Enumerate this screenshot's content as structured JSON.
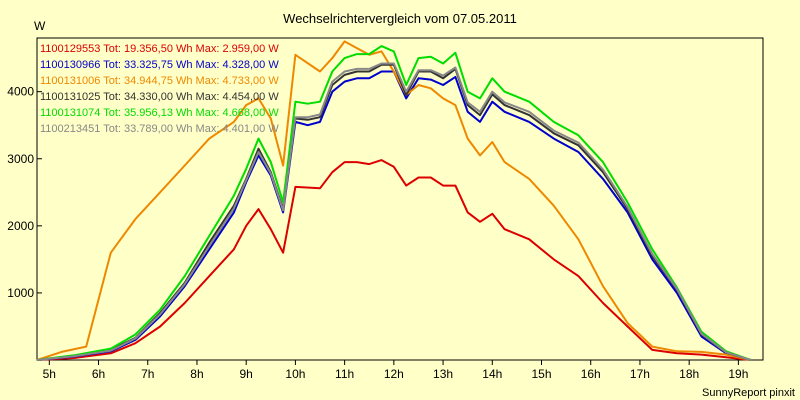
{
  "chart_data": {
    "type": "line",
    "title": "Wechselrichtervergleich vom 07.05.2011",
    "ylabel": "W",
    "footer": "SunnyReport pinxit",
    "ylim": [
      0,
      4800
    ],
    "xlim": [
      4.75,
      19.5
    ],
    "yticks": [
      1000,
      2000,
      3000,
      4000
    ],
    "xticks": [
      {
        "v": 5,
        "label": "5h"
      },
      {
        "v": 6,
        "label": "6h"
      },
      {
        "v": 7,
        "label": "7h"
      },
      {
        "v": 8,
        "label": "8h"
      },
      {
        "v": 9,
        "label": "9h"
      },
      {
        "v": 10,
        "label": "10h"
      },
      {
        "v": 11,
        "label": "11h"
      },
      {
        "v": 12,
        "label": "12h"
      },
      {
        "v": 13,
        "label": "13h"
      },
      {
        "v": 14,
        "label": "14h"
      },
      {
        "v": 15,
        "label": "15h"
      },
      {
        "v": 16,
        "label": "16h"
      },
      {
        "v": 17,
        "label": "17h"
      },
      {
        "v": 18,
        "label": "18h"
      },
      {
        "v": 19,
        "label": "19h"
      }
    ],
    "series": [
      {
        "name": "1100129553",
        "label": "1100129553 Tot: 19.356,50 Wh Max: 2.959,00 W",
        "color": "#dd0000",
        "points": [
          [
            4.75,
            0
          ],
          [
            5.5,
            30
          ],
          [
            6.25,
            100
          ],
          [
            6.75,
            250
          ],
          [
            7.25,
            500
          ],
          [
            7.75,
            850
          ],
          [
            8.25,
            1250
          ],
          [
            8.75,
            1650
          ],
          [
            9.0,
            2000
          ],
          [
            9.25,
            2250
          ],
          [
            9.5,
            1950
          ],
          [
            9.75,
            1600
          ],
          [
            10.0,
            2580
          ],
          [
            10.5,
            2560
          ],
          [
            10.75,
            2800
          ],
          [
            11.0,
            2950
          ],
          [
            11.25,
            2950
          ],
          [
            11.5,
            2920
          ],
          [
            11.75,
            2980
          ],
          [
            12.0,
            2880
          ],
          [
            12.25,
            2600
          ],
          [
            12.5,
            2720
          ],
          [
            12.75,
            2720
          ],
          [
            13.0,
            2600
          ],
          [
            13.25,
            2600
          ],
          [
            13.5,
            2200
          ],
          [
            13.75,
            2060
          ],
          [
            14.0,
            2180
          ],
          [
            14.25,
            1950
          ],
          [
            14.75,
            1800
          ],
          [
            15.25,
            1500
          ],
          [
            15.75,
            1250
          ],
          [
            16.25,
            850
          ],
          [
            16.75,
            500
          ],
          [
            17.25,
            150
          ],
          [
            17.75,
            100
          ],
          [
            18.25,
            80
          ],
          [
            18.75,
            40
          ],
          [
            19.25,
            0
          ]
        ]
      },
      {
        "name": "1100130966",
        "label": "1100130966 Tot: 33.325,75 Wh Max: 4.328,00 W",
        "color": "#0000cc",
        "points": [
          [
            4.75,
            0
          ],
          [
            5.5,
            50
          ],
          [
            6.25,
            130
          ],
          [
            6.75,
            300
          ],
          [
            7.25,
            650
          ],
          [
            7.75,
            1100
          ],
          [
            8.25,
            1650
          ],
          [
            8.75,
            2200
          ],
          [
            9.0,
            2650
          ],
          [
            9.25,
            3050
          ],
          [
            9.5,
            2750
          ],
          [
            9.75,
            2200
          ],
          [
            10.0,
            3550
          ],
          [
            10.25,
            3500
          ],
          [
            10.5,
            3550
          ],
          [
            10.75,
            4000
          ],
          [
            11.0,
            4150
          ],
          [
            11.25,
            4200
          ],
          [
            11.5,
            4200
          ],
          [
            11.75,
            4300
          ],
          [
            12.0,
            4300
          ],
          [
            12.25,
            3900
          ],
          [
            12.5,
            4200
          ],
          [
            12.75,
            4180
          ],
          [
            13.0,
            4100
          ],
          [
            13.25,
            4220
          ],
          [
            13.5,
            3700
          ],
          [
            13.75,
            3550
          ],
          [
            14.0,
            3850
          ],
          [
            14.25,
            3700
          ],
          [
            14.75,
            3550
          ],
          [
            15.25,
            3300
          ],
          [
            15.75,
            3100
          ],
          [
            16.25,
            2700
          ],
          [
            16.75,
            2200
          ],
          [
            17.25,
            1500
          ],
          [
            17.75,
            1000
          ],
          [
            18.25,
            350
          ],
          [
            18.75,
            100
          ],
          [
            19.25,
            0
          ]
        ]
      },
      {
        "name": "1100131006",
        "label": "1100131006 Tot: 34.944,75 Wh Max: 4.733,00 W",
        "color": "#ee8800",
        "points": [
          [
            4.75,
            0
          ],
          [
            5.25,
            120
          ],
          [
            5.75,
            200
          ],
          [
            6.25,
            1600
          ],
          [
            6.75,
            2100
          ],
          [
            7.25,
            2500
          ],
          [
            7.75,
            2900
          ],
          [
            8.25,
            3300
          ],
          [
            8.75,
            3550
          ],
          [
            9.0,
            3800
          ],
          [
            9.25,
            3900
          ],
          [
            9.5,
            3600
          ],
          [
            9.75,
            2900
          ],
          [
            10.0,
            4550
          ],
          [
            10.5,
            4300
          ],
          [
            10.75,
            4500
          ],
          [
            11.0,
            4750
          ],
          [
            11.25,
            4650
          ],
          [
            11.5,
            4550
          ],
          [
            11.75,
            4600
          ],
          [
            12.0,
            4300
          ],
          [
            12.25,
            3950
          ],
          [
            12.5,
            4100
          ],
          [
            12.75,
            4050
          ],
          [
            13.0,
            3900
          ],
          [
            13.25,
            3800
          ],
          [
            13.5,
            3300
          ],
          [
            13.75,
            3050
          ],
          [
            14.0,
            3250
          ],
          [
            14.25,
            2950
          ],
          [
            14.75,
            2700
          ],
          [
            15.25,
            2300
          ],
          [
            15.75,
            1800
          ],
          [
            16.25,
            1100
          ],
          [
            16.75,
            550
          ],
          [
            17.25,
            200
          ],
          [
            17.75,
            130
          ],
          [
            18.25,
            120
          ],
          [
            18.75,
            80
          ],
          [
            19.25,
            0
          ]
        ]
      },
      {
        "name": "1100131025",
        "label": "1100131025 Tot: 34.330,00 Wh Max: 4.454,00 W",
        "color": "#333333",
        "points": [
          [
            4.75,
            0
          ],
          [
            5.5,
            60
          ],
          [
            6.25,
            150
          ],
          [
            6.75,
            330
          ],
          [
            7.25,
            700
          ],
          [
            7.75,
            1150
          ],
          [
            8.25,
            1750
          ],
          [
            8.75,
            2300
          ],
          [
            9.0,
            2700
          ],
          [
            9.25,
            3150
          ],
          [
            9.5,
            2800
          ],
          [
            9.75,
            2250
          ],
          [
            10.0,
            3600
          ],
          [
            10.25,
            3580
          ],
          [
            10.5,
            3620
          ],
          [
            10.75,
            4100
          ],
          [
            11.0,
            4250
          ],
          [
            11.25,
            4300
          ],
          [
            11.5,
            4300
          ],
          [
            11.75,
            4400
          ],
          [
            12.0,
            4400
          ],
          [
            12.25,
            3950
          ],
          [
            12.5,
            4300
          ],
          [
            12.75,
            4300
          ],
          [
            13.0,
            4200
          ],
          [
            13.25,
            4340
          ],
          [
            13.5,
            3800
          ],
          [
            13.75,
            3650
          ],
          [
            14.0,
            3960
          ],
          [
            14.25,
            3800
          ],
          [
            14.75,
            3650
          ],
          [
            15.25,
            3380
          ],
          [
            15.75,
            3200
          ],
          [
            16.25,
            2800
          ],
          [
            16.75,
            2250
          ],
          [
            17.25,
            1550
          ],
          [
            17.75,
            1050
          ],
          [
            18.25,
            380
          ],
          [
            18.75,
            110
          ],
          [
            19.25,
            0
          ]
        ]
      },
      {
        "name": "1100131074",
        "label": "1100131074 Tot: 35.956,13 Wh Max: 4.668,00 W",
        "color": "#00dd00",
        "points": [
          [
            4.75,
            0
          ],
          [
            5.5,
            70
          ],
          [
            6.25,
            170
          ],
          [
            6.75,
            380
          ],
          [
            7.25,
            750
          ],
          [
            7.75,
            1250
          ],
          [
            8.25,
            1850
          ],
          [
            8.75,
            2450
          ],
          [
            9.0,
            2850
          ],
          [
            9.25,
            3300
          ],
          [
            9.5,
            2950
          ],
          [
            9.75,
            2350
          ],
          [
            10.0,
            3850
          ],
          [
            10.25,
            3820
          ],
          [
            10.5,
            3850
          ],
          [
            10.75,
            4300
          ],
          [
            11.0,
            4500
          ],
          [
            11.25,
            4560
          ],
          [
            11.5,
            4560
          ],
          [
            11.75,
            4680
          ],
          [
            12.0,
            4600
          ],
          [
            12.25,
            4100
          ],
          [
            12.5,
            4500
          ],
          [
            12.75,
            4520
          ],
          [
            13.0,
            4420
          ],
          [
            13.25,
            4580
          ],
          [
            13.5,
            4000
          ],
          [
            13.75,
            3900
          ],
          [
            14.0,
            4200
          ],
          [
            14.25,
            4000
          ],
          [
            14.75,
            3850
          ],
          [
            15.25,
            3550
          ],
          [
            15.75,
            3350
          ],
          [
            16.25,
            2950
          ],
          [
            16.75,
            2350
          ],
          [
            17.25,
            1650
          ],
          [
            17.75,
            1080
          ],
          [
            18.25,
            420
          ],
          [
            18.75,
            130
          ],
          [
            19.25,
            0
          ]
        ]
      },
      {
        "name": "1100213451",
        "label": "1100213451 Tot: 33.789,00 Wh Max: 4.401,00 W",
        "color": "#888888",
        "points": [
          [
            4.75,
            0
          ],
          [
            5.5,
            55
          ],
          [
            6.25,
            140
          ],
          [
            6.75,
            320
          ],
          [
            7.25,
            680
          ],
          [
            7.75,
            1130
          ],
          [
            8.25,
            1700
          ],
          [
            8.75,
            2260
          ],
          [
            9.0,
            2680
          ],
          [
            9.25,
            3100
          ],
          [
            9.5,
            2780
          ],
          [
            9.75,
            2230
          ],
          [
            10.0,
            3620
          ],
          [
            10.25,
            3620
          ],
          [
            10.5,
            3660
          ],
          [
            10.75,
            4150
          ],
          [
            11.0,
            4300
          ],
          [
            11.25,
            4340
          ],
          [
            11.5,
            4340
          ],
          [
            11.75,
            4420
          ],
          [
            12.0,
            4420
          ],
          [
            12.25,
            4000
          ],
          [
            12.5,
            4320
          ],
          [
            12.75,
            4320
          ],
          [
            13.0,
            4240
          ],
          [
            13.25,
            4360
          ],
          [
            13.5,
            3840
          ],
          [
            13.75,
            3700
          ],
          [
            14.0,
            4000
          ],
          [
            14.25,
            3840
          ],
          [
            14.75,
            3700
          ],
          [
            15.25,
            3420
          ],
          [
            15.75,
            3240
          ],
          [
            16.25,
            2840
          ],
          [
            16.75,
            2280
          ],
          [
            17.25,
            1580
          ],
          [
            17.75,
            1060
          ],
          [
            18.25,
            390
          ],
          [
            18.75,
            115
          ],
          [
            19.25,
            0
          ]
        ]
      }
    ]
  }
}
